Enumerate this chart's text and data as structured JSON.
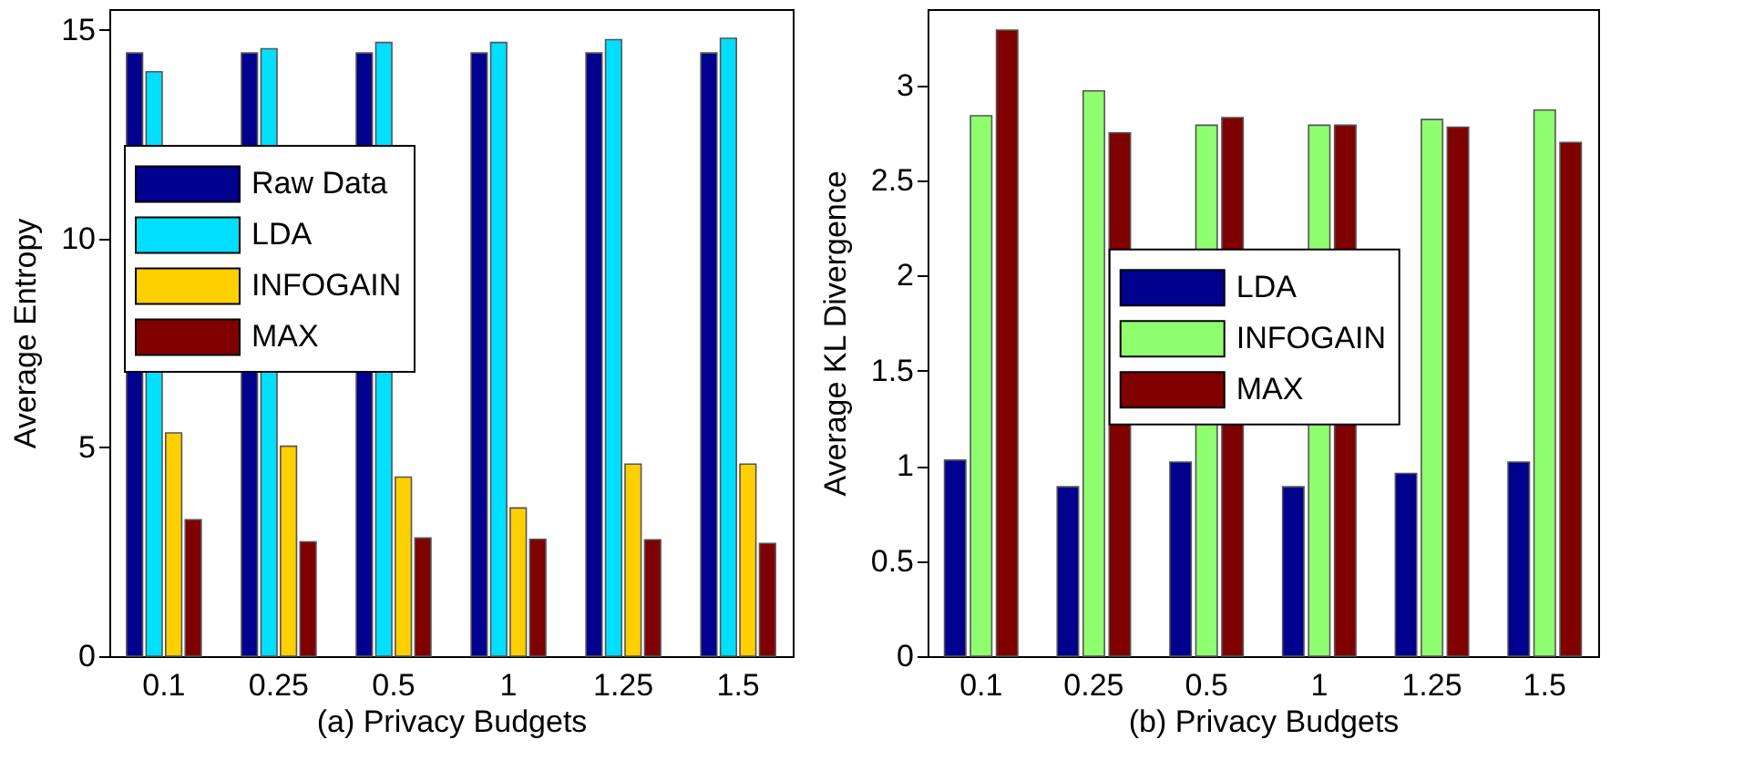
{
  "chart_data": [
    {
      "type": "bar",
      "xlabel": "(a) Privacy Budgets",
      "ylabel": "Average Entropy",
      "categories": [
        "0.1",
        "0.25",
        "0.5",
        "1",
        "1.25",
        "1.5"
      ],
      "ylim": [
        0,
        15.5
      ],
      "yticks": [
        0,
        5,
        10,
        15
      ],
      "legend": "left",
      "series": [
        {
          "name": "Raw Data",
          "color": "#00008f",
          "values": [
            14.45,
            14.45,
            14.45,
            14.45,
            14.45,
            14.45
          ]
        },
        {
          "name": "LDA",
          "color": "#00dfff",
          "values": [
            14.0,
            14.55,
            14.7,
            14.7,
            14.77,
            14.8
          ]
        },
        {
          "name": "INFOGAIN",
          "color": "#ffcf00",
          "values": [
            5.35,
            5.03,
            4.29,
            3.55,
            4.6,
            4.6
          ]
        },
        {
          "name": "MAX",
          "color": "#800000",
          "values": [
            3.27,
            2.74,
            2.83,
            2.8,
            2.79,
            2.7
          ]
        }
      ]
    },
    {
      "type": "bar",
      "xlabel": "(b) Privacy Budgets",
      "ylabel": "Average KL Divergence",
      "categories": [
        "0.1",
        "0.25",
        "0.5",
        "1",
        "1.25",
        "1.5"
      ],
      "ylim": [
        0,
        3.4
      ],
      "yticks": [
        0,
        0.5,
        1,
        1.5,
        2,
        2.5,
        3
      ],
      "legend": "center",
      "series": [
        {
          "name": "LDA",
          "color": "#00008f",
          "values": [
            1.03,
            0.89,
            1.02,
            0.89,
            0.96,
            1.02
          ]
        },
        {
          "name": "INFOGAIN",
          "color": "#8fff6f",
          "values": [
            2.84,
            2.97,
            2.79,
            2.79,
            2.82,
            2.87
          ]
        },
        {
          "name": "MAX",
          "color": "#800000",
          "values": [
            3.29,
            2.75,
            2.83,
            2.79,
            2.78,
            2.7
          ]
        }
      ]
    }
  ]
}
